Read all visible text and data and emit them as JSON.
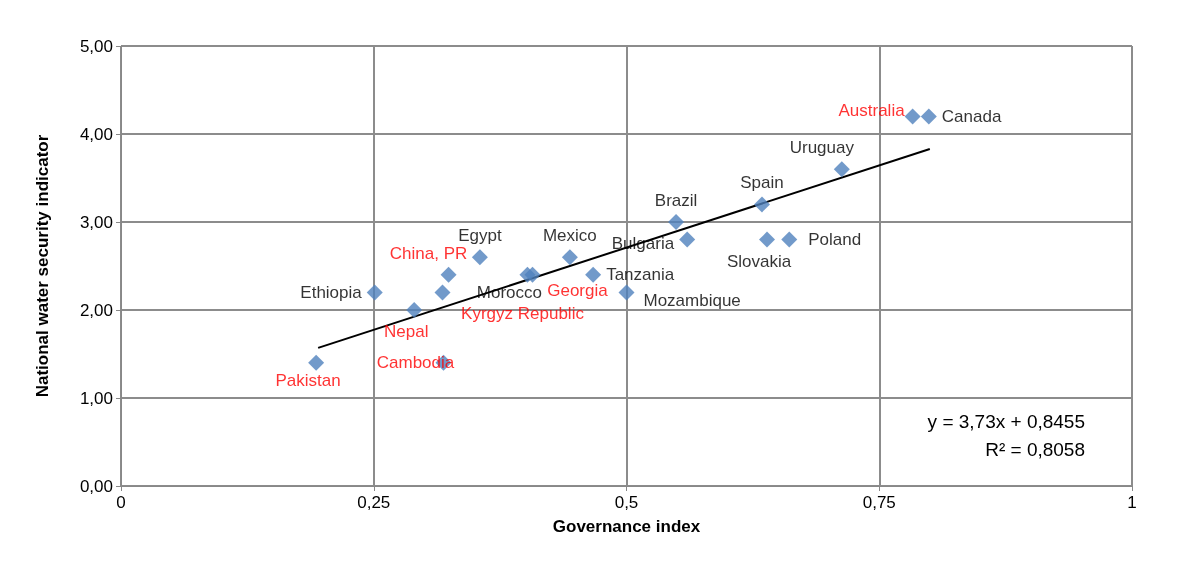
{
  "chart_data": {
    "type": "scatter",
    "xlabel": "Governance index",
    "ylabel": "National water security indicator",
    "xlim": [
      0,
      1
    ],
    "xticks": [
      {
        "value": 0,
        "label": "0"
      },
      {
        "value": 0.25,
        "label": "0,25"
      },
      {
        "value": 0.5,
        "label": "0,5"
      },
      {
        "value": 0.75,
        "label": "0,75"
      },
      {
        "value": 1,
        "label": "1"
      }
    ],
    "ylim": [
      0,
      5
    ],
    "yticks": [
      {
        "value": 0,
        "label": "0,00"
      },
      {
        "value": 1,
        "label": "1,00"
      },
      {
        "value": 2,
        "label": "2,00"
      },
      {
        "value": 3,
        "label": "3,00"
      },
      {
        "value": 4,
        "label": "4,00"
      },
      {
        "value": 5,
        "label": "5,00"
      }
    ],
    "grid": true,
    "marker": "diamond",
    "series": [
      {
        "color": "#4f81bd",
        "x": [
          0.251,
          0.355,
          0.402,
          0.444,
          0.467,
          0.5,
          0.549,
          0.56,
          0.634,
          0.639,
          0.661,
          0.713,
          0.799
        ],
        "values": [
          2.2,
          2.6,
          2.4,
          2.6,
          2.4,
          2.2,
          3.0,
          2.8,
          3.2,
          2.8,
          2.8,
          3.6,
          4.2
        ],
        "value_labels": [
          "Ethiopia",
          "Egypt",
          "Morocco",
          "Mexico",
          "Tanzania",
          "Mozambique",
          "Brazil",
          "Bulgaria",
          "Spain",
          "Slovakia",
          "Poland",
          "Uruguay",
          "Canada"
        ]
      },
      {
        "color": "#4f81bd",
        "x": [
          0.193,
          0.29,
          0.318,
          0.319,
          0.324,
          0.407,
          0.783
        ],
        "values": [
          1.4,
          2.0,
          2.2,
          1.4,
          2.4,
          2.4,
          4.2
        ],
        "value_labels": [
          "Pakistan",
          "Nepal",
          "Kyrgyz Republic",
          "Cambodia",
          "China, PR",
          "Georgia",
          "Australia"
        ]
      },
      {
        "type": "line",
        "color": "#000000",
        "x": [
          0.195,
          0.8
        ],
        "values": [
          1.57,
          3.83
        ],
        "marker": "none"
      }
    ],
    "annotations": [
      "y = 3,73x + 0,8455",
      "R² = 0,8058"
    ]
  }
}
